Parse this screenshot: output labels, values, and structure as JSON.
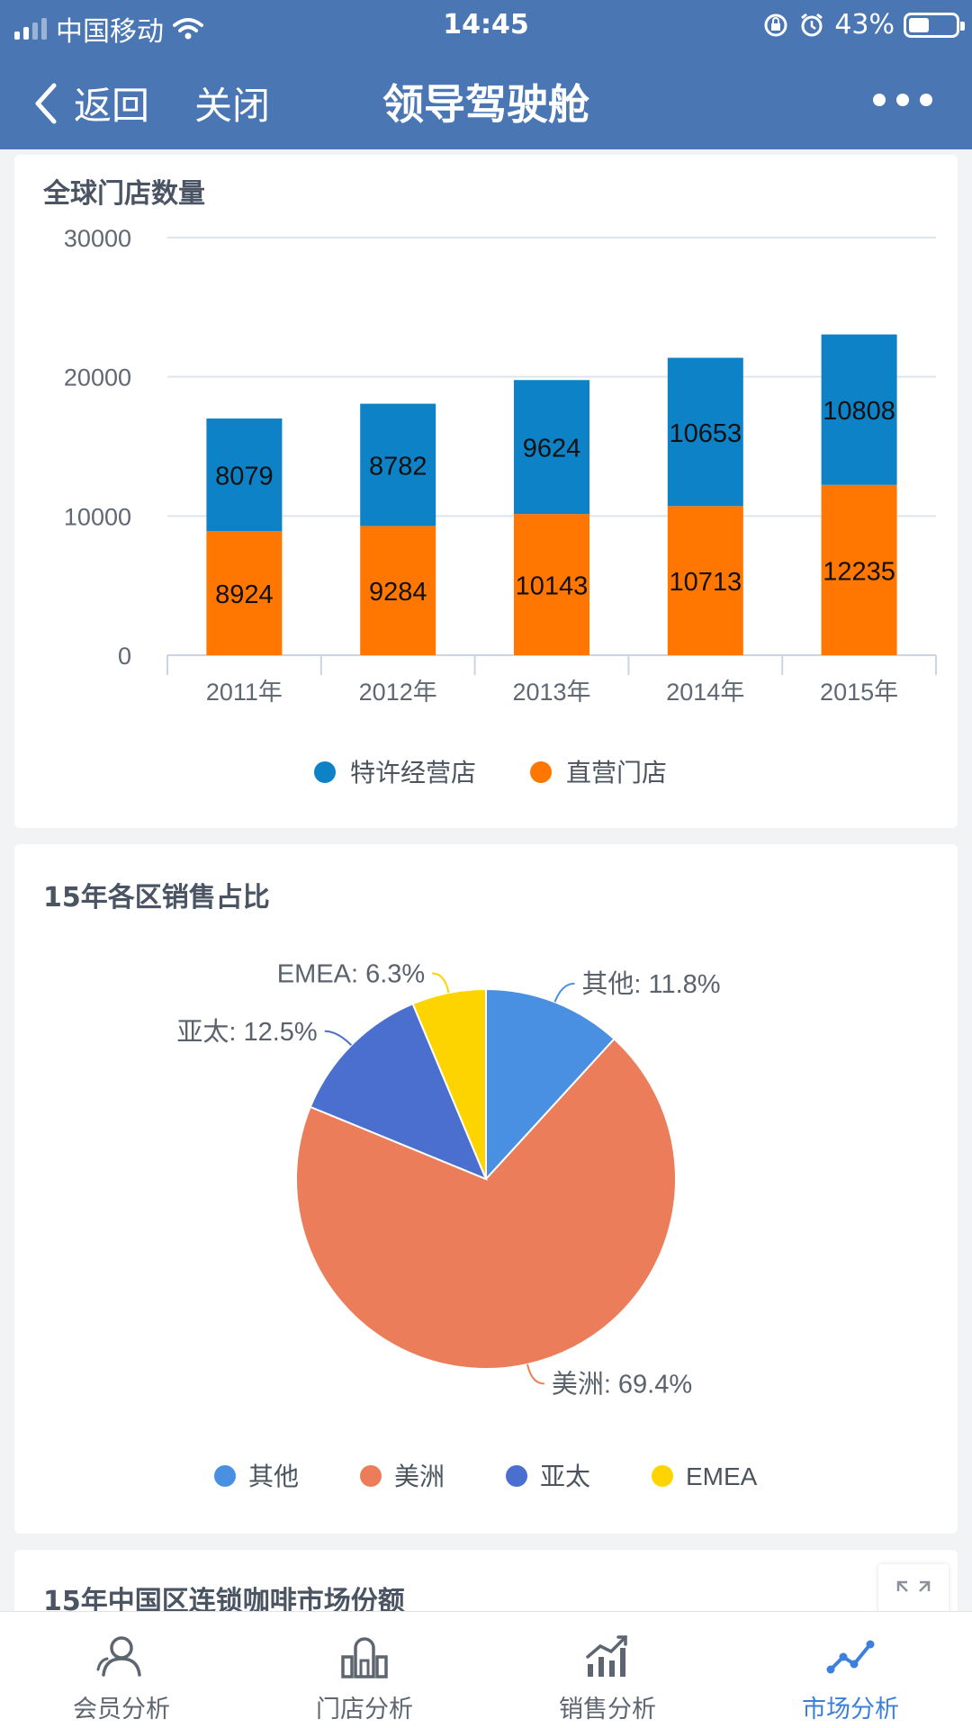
{
  "status_bar": {
    "carrier": "中国移动",
    "time": "14:45",
    "battery": "43%"
  },
  "nav": {
    "back_label": "返回",
    "close_label": "关闭",
    "title": "领导驾驶舱"
  },
  "cards": {
    "stores_title": "全球门店数量",
    "sales_title": "15年各区销售占比",
    "china_title": "15年中国区连锁咖啡市场份额"
  },
  "chart_data": [
    {
      "type": "bar",
      "stacked": true,
      "title": "全球门店数量",
      "categories": [
        "2011年",
        "2012年",
        "2013年",
        "2014年",
        "2015年"
      ],
      "series": [
        {
          "name": "直营门店",
          "color": "#ff7700",
          "values": [
            8924,
            9284,
            10143,
            10713,
            12235
          ]
        },
        {
          "name": "特许经营店",
          "color": "#0e82c7",
          "values": [
            8079,
            8782,
            9624,
            10653,
            10808
          ]
        }
      ],
      "ylim": [
        0,
        30000
      ],
      "yticks": [
        0,
        10000,
        20000,
        30000
      ],
      "grid": true,
      "legend": "bottom-center",
      "legend_order": [
        "特许经营店",
        "直营门店"
      ]
    },
    {
      "type": "pie",
      "title": "15年各区销售占比",
      "slices": [
        {
          "name": "其他",
          "value": 11.8,
          "label": "其他: 11.8%",
          "color": "#4a90e2"
        },
        {
          "name": "美洲",
          "value": 69.4,
          "label": "美洲: 69.4%",
          "color": "#ec7d5a"
        },
        {
          "name": "亚太",
          "value": 12.5,
          "label": "亚太: 12.5%",
          "color": "#4a6fcf"
        },
        {
          "name": "EMEA",
          "value": 6.3,
          "label": "EMEA: 6.3%",
          "color": "#fdd400"
        }
      ],
      "legend": "bottom-center"
    }
  ],
  "tabbar": {
    "items": [
      {
        "label": "会员分析",
        "icon": "member-icon",
        "active": false
      },
      {
        "label": "门店分析",
        "icon": "store-icon",
        "active": false
      },
      {
        "label": "销售分析",
        "icon": "sales-chart-icon",
        "active": false
      },
      {
        "label": "市场分析",
        "icon": "market-trend-icon",
        "active": true
      }
    ]
  }
}
